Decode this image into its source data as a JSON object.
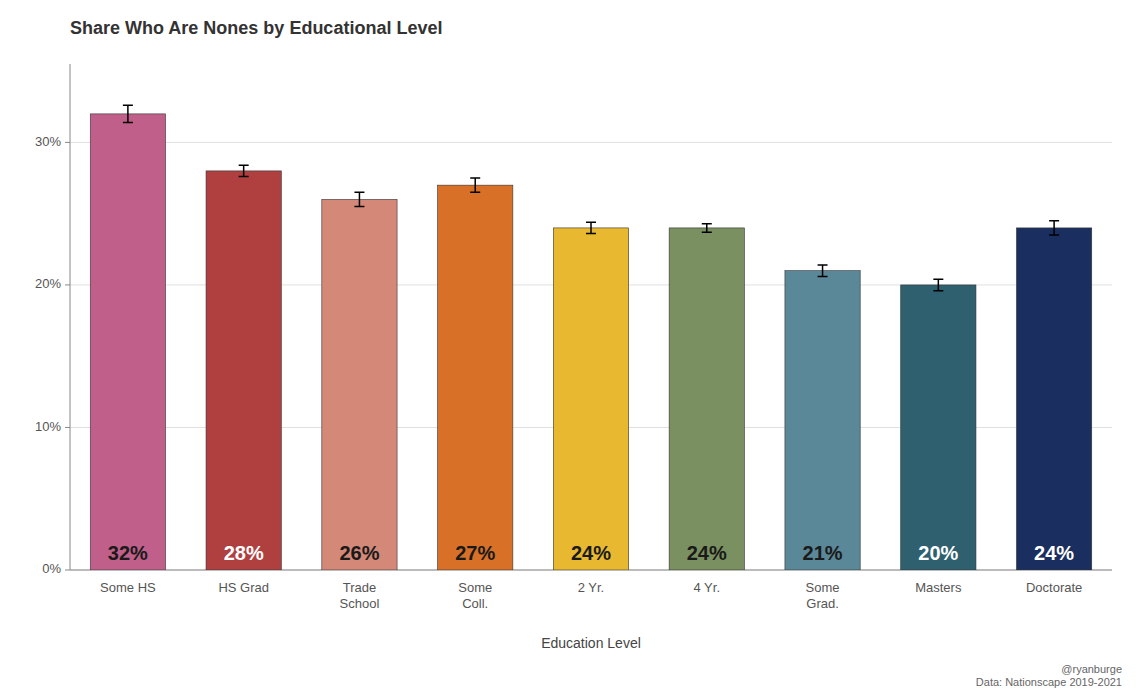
{
  "chart_data": {
    "type": "bar",
    "title": "Share Who Are Nones by Educational Level",
    "xlabel": "Education Level",
    "categories": [
      "Some HS",
      "HS Grad",
      "Trade\nSchool",
      "Some\nColl.",
      "2 Yr.",
      "4 Yr.",
      "Some\nGrad.",
      "Masters",
      "Doctorate"
    ],
    "values": [
      0.32,
      0.28,
      0.26,
      0.27,
      0.24,
      0.24,
      0.21,
      0.2,
      0.24
    ],
    "value_labels": [
      "32%",
      "28%",
      "26%",
      "27%",
      "24%",
      "24%",
      "21%",
      "20%",
      "24%"
    ],
    "errors": [
      0.006,
      0.004,
      0.005,
      0.005,
      0.004,
      0.003,
      0.004,
      0.004,
      0.005
    ],
    "colors": [
      "#c0608a",
      "#b04040",
      "#d48878",
      "#d97028",
      "#e8b830",
      "#7a9060",
      "#5a8898",
      "#2e6070",
      "#1a2e60"
    ],
    "ylim": [
      0,
      0.355
    ],
    "yticks": [
      {
        "value": 0.0,
        "label": "0%"
      },
      {
        "value": 0.1,
        "label": "10%"
      },
      {
        "value": 0.2,
        "label": "20%"
      },
      {
        "value": 0.3,
        "label": "30%"
      }
    ],
    "grid": true,
    "data_labels": true,
    "annotations": [
      "@ryanburge\nData: Nationscape 2019-2021"
    ]
  }
}
